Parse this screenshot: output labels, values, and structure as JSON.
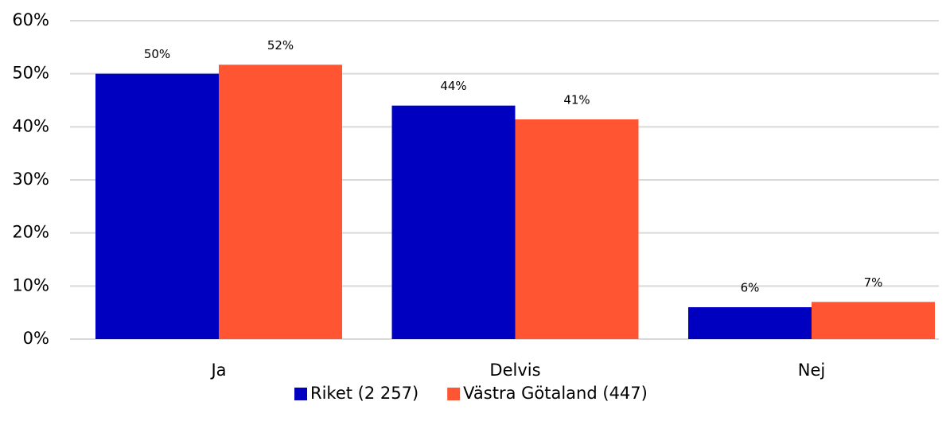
{
  "chart_data": {
    "type": "bar",
    "categories": [
      "Ja",
      "Delvis",
      "Nej"
    ],
    "series": [
      {
        "name": "Riket (2 257)",
        "color": "#0000c0",
        "values": [
          50,
          44,
          6
        ],
        "value_labels": [
          "50%",
          "44%",
          "6%"
        ]
      },
      {
        "name": "Västra Götaland (447)",
        "color": "#ff5533",
        "values": [
          51.7,
          41.4,
          7
        ],
        "value_labels": [
          "52%",
          "41%",
          "7%"
        ]
      }
    ],
    "ylim": [
      0,
      60
    ],
    "yticks": [
      {
        "value": 0,
        "label": "0%"
      },
      {
        "value": 10,
        "label": "10%"
      },
      {
        "value": 20,
        "label": "20%"
      },
      {
        "value": 30,
        "label": "30%"
      },
      {
        "value": 40,
        "label": "40%"
      },
      {
        "value": 50,
        "label": "50%"
      },
      {
        "value": 60,
        "label": "60%"
      }
    ],
    "grid": true,
    "legend": "bottom"
  }
}
